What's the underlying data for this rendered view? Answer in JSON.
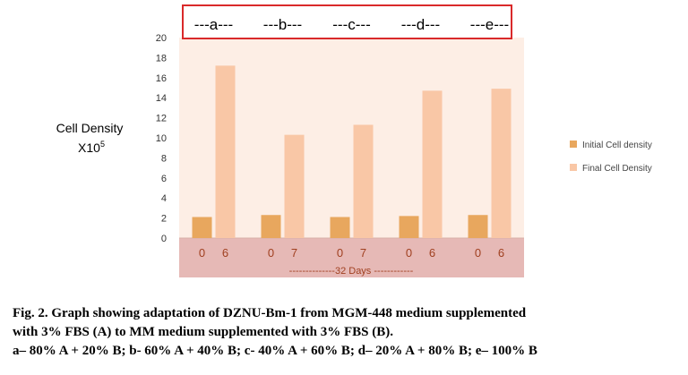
{
  "chart_data": {
    "type": "bar",
    "ylabel_main": "Cell Density",
    "ylabel_unit": "X10",
    "ylabel_unit_exp": "5",
    "ylim": [
      0,
      20
    ],
    "yticks": [
      0,
      2,
      4,
      6,
      8,
      10,
      12,
      14,
      16,
      18,
      20
    ],
    "groups": [
      {
        "label": "---a---",
        "initial_day": "0",
        "final_day": "6",
        "initial": 2.1,
        "final": 17.2
      },
      {
        "label": "---b---",
        "initial_day": "0",
        "final_day": "7",
        "initial": 2.3,
        "final": 10.3
      },
      {
        "label": "---c---",
        "initial_day": "0",
        "final_day": "7",
        "initial": 2.1,
        "final": 11.3
      },
      {
        "label": "---d---",
        "initial_day": "0",
        "final_day": "6",
        "initial": 2.2,
        "final": 14.7
      },
      {
        "label": "---e---",
        "initial_day": "0",
        "final_day": "6",
        "initial": 2.3,
        "final": 14.9
      }
    ],
    "series": [
      {
        "name": "Initial Cell density",
        "color": "#e8a75e"
      },
      {
        "name": "Final Cell Density",
        "color": "#f9c7a6"
      }
    ],
    "xlabel": "--------------32 Days ------------",
    "colors": {
      "plot_bg": "#fdeee5",
      "axis_band": "#e6b9b6",
      "label_box": "#d9292a",
      "day_text": "#a04020"
    }
  },
  "caption": {
    "line1": "Fig. 2. Graph showing adaptation of DZNU-Bm-1 from MGM-448 medium supplemented",
    "line2": "with 3% FBS (A) to MM medium supplemented with 3% FBS (B).",
    "line3": "a– 80% A + 20% B; b- 60% A + 40% B; c- 40% A + 60% B; d– 20% A + 80% B; e– 100% B"
  }
}
